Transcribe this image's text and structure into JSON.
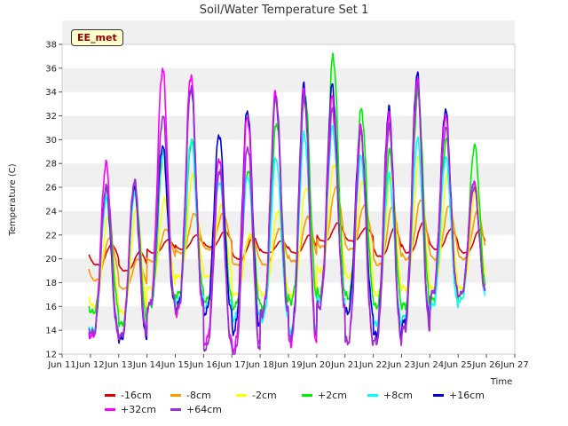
{
  "chart_data": {
    "type": "line",
    "title": "Soil/Water Temperature Set 1",
    "xlabel": "Time",
    "ylabel": "Temperature (C)",
    "badge": "EE_met",
    "ylim": [
      12,
      38
    ],
    "yticks": [
      12,
      14,
      16,
      18,
      20,
      22,
      24,
      26,
      28,
      30,
      32,
      34,
      36,
      38
    ],
    "xlim": [
      11,
      27
    ],
    "xticks": [
      11,
      12,
      13,
      14,
      15,
      16,
      17,
      18,
      19,
      20,
      21,
      22,
      23,
      24,
      25,
      26,
      27
    ],
    "xticklabels": [
      "Jun 11",
      "Jun 12",
      "Jun 13",
      "Jun 14",
      "Jun 15",
      "Jun 16",
      "Jun 17",
      "Jun 18",
      "Jun 19",
      "Jun 20",
      "Jun 21",
      "Jun 22",
      "Jun 23",
      "Jun 24",
      "Jun 25",
      "Jun 26",
      "Jun 27"
    ],
    "grid": "horizontal bands",
    "days": [
      12,
      13,
      14,
      15,
      16,
      17,
      18,
      19,
      20,
      21,
      22,
      23,
      24,
      25
    ],
    "series": [
      {
        "name": "-16cm",
        "color": "#dd0000",
        "min": [
          19.5,
          19.0,
          20.5,
          20.8,
          21.0,
          20.0,
          20.5,
          20.5,
          21.5,
          21.5,
          20.2,
          20.5,
          20.8,
          20.5
        ],
        "max": [
          21.2,
          20.6,
          21.6,
          22.0,
          22.3,
          21.8,
          21.5,
          22.0,
          23.0,
          22.6,
          22.6,
          23.0,
          22.5,
          22.4
        ],
        "lag": 0.75
      },
      {
        "name": "-8cm",
        "color": "#ff9900",
        "min": [
          18.2,
          17.5,
          19.8,
          20.5,
          20.8,
          19.5,
          19.5,
          19.8,
          21.0,
          20.8,
          19.5,
          20.0,
          20.0,
          20.0
        ],
        "max": [
          21.8,
          20.0,
          22.5,
          23.8,
          23.8,
          22.0,
          22.5,
          23.5,
          26.0,
          24.5,
          24.5,
          25.0,
          24.5,
          24.0
        ],
        "lag": 0.68
      },
      {
        "name": "-2cm",
        "color": "#ffff00",
        "min": [
          16.0,
          15.5,
          17.5,
          18.5,
          18.5,
          17.0,
          17.0,
          17.0,
          19.0,
          18.5,
          17.0,
          17.5,
          17.5,
          17.5
        ],
        "max": [
          23.5,
          24.0,
          25.0,
          27.0,
          24.5,
          22.0,
          24.0,
          26.0,
          28.0,
          26.5,
          27.0,
          28.5,
          27.0,
          26.0
        ],
        "lag": 0.62
      },
      {
        "name": "+2cm",
        "color": "#00ee00",
        "min": [
          15.5,
          14.5,
          16.0,
          17.0,
          16.5,
          16.0,
          16.0,
          16.5,
          17.0,
          16.8,
          16.0,
          16.0,
          16.5,
          17.0
        ],
        "max": [
          26.0,
          26.0,
          29.0,
          30.0,
          27.5,
          27.5,
          31.5,
          34.0,
          37.0,
          32.5,
          29.0,
          34.0,
          30.0,
          29.5
        ],
        "lag": 0.58
      },
      {
        "name": "+8cm",
        "color": "#00ffff",
        "min": [
          14.0,
          13.5,
          16.0,
          16.5,
          16.0,
          15.0,
          15.0,
          14.0,
          16.5,
          15.5,
          14.5,
          15.0,
          16.0,
          16.5
        ],
        "max": [
          25.0,
          25.5,
          29.0,
          30.0,
          26.5,
          27.0,
          28.5,
          30.5,
          31.0,
          28.5,
          27.0,
          30.0,
          28.5,
          26.5
        ],
        "lag": 0.56
      },
      {
        "name": "+16cm",
        "color": "#0000dd",
        "min": [
          13.5,
          13.2,
          16.0,
          16.0,
          15.5,
          14.0,
          15.5,
          13.5,
          16.0,
          15.5,
          13.5,
          14.5,
          17.0,
          17.0
        ],
        "max": [
          26.0,
          26.0,
          29.5,
          34.5,
          30.5,
          32.5,
          33.5,
          34.5,
          34.5,
          31.0,
          32.5,
          35.5,
          32.5,
          26.5
        ],
        "lag": 0.55
      },
      {
        "name": "+32cm",
        "color": "#ff00ff",
        "min": [
          13.5,
          13.5,
          16.0,
          15.5,
          13.0,
          12.5,
          15.5,
          13.0,
          16.0,
          13.0,
          13.0,
          14.0,
          17.0,
          17.0
        ],
        "max": [
          28.0,
          26.5,
          36.0,
          35.5,
          28.5,
          32.0,
          34.0,
          34.0,
          33.5,
          31.0,
          32.0,
          35.0,
          32.0,
          26.5
        ],
        "lag": 0.55
      },
      {
        "name": "+64cm",
        "color": "#9933cc",
        "min": [
          13.8,
          13.5,
          16.0,
          15.8,
          12.5,
          12.0,
          15.5,
          13.5,
          16.0,
          13.0,
          13.0,
          14.0,
          17.0,
          17.0
        ],
        "max": [
          26.0,
          26.5,
          32.0,
          34.5,
          27.5,
          29.5,
          33.5,
          33.5,
          32.5,
          30.5,
          31.0,
          34.5,
          31.0,
          26.0
        ],
        "lag": 0.56
      }
    ]
  }
}
